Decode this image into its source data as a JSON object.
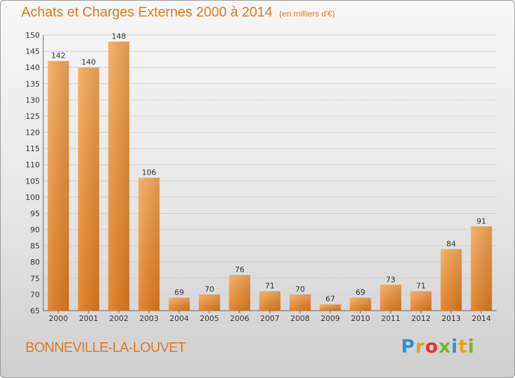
{
  "header": {
    "title": "Achats et Charges Externes 2000 à 2014",
    "unit": "(en milliers d'€)"
  },
  "footer": {
    "commune": "BONNEVILLE-LA-LOUVET",
    "logo_letters": [
      "P",
      "r",
      "o",
      "x",
      "i",
      "t",
      "i"
    ],
    "logo_colors": [
      "#2e8fd8",
      "#e8a31a",
      "#e0392b",
      "#7bb52a",
      "#2e8fd8",
      "#e8a31a",
      "#7bb52a"
    ]
  },
  "chart_data": {
    "type": "bar",
    "title": "Achats et Charges Externes 2000 à 2014",
    "subtitle": "(en milliers d'€)",
    "xlabel": "",
    "ylabel": "",
    "categories": [
      "2000",
      "2001",
      "2002",
      "2003",
      "2004",
      "2005",
      "2006",
      "2007",
      "2008",
      "2009",
      "2010",
      "2011",
      "2012",
      "2013",
      "2014"
    ],
    "values": [
      142,
      140,
      148,
      106,
      69,
      70,
      76,
      71,
      70,
      67,
      69,
      73,
      71,
      84,
      91
    ],
    "ylim": [
      65,
      150
    ],
    "yticks": [
      65,
      70,
      75,
      80,
      85,
      90,
      95,
      100,
      105,
      110,
      115,
      120,
      125,
      130,
      135,
      140,
      145,
      150
    ],
    "grid": true,
    "bar_color_top": "#f5a85a",
    "bar_color_bottom": "#e07a1c"
  }
}
